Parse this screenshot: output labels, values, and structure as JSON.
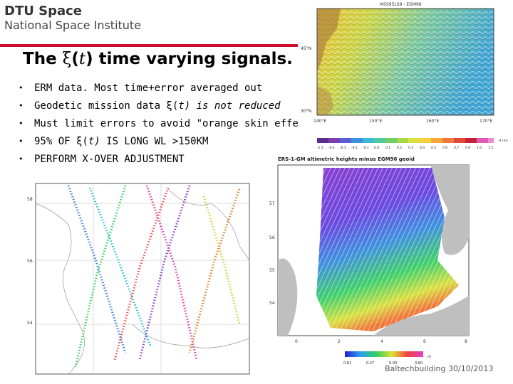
{
  "logo": {
    "line1": "DTU Space",
    "line2": "National Space Institute"
  },
  "slide": {
    "title_prefix": "The ",
    "title_xi": "ξ",
    "title_paren_open": "(",
    "title_t": "t",
    "title_paren_close": ")",
    "title_suffix": " time varying signals.",
    "bullets": [
      {
        "text": "ERM data. Most time+error averaged out"
      },
      {
        "pre": "Geodetic mission data ξ(",
        "italic": "t) is not reduced"
      },
      {
        "text": "Must limit errors to avoid \"orange skin effect\""
      },
      {
        "pre": "95% OF ξ(",
        "italic": "t)",
        "post": " IS LONG WL >150KM"
      },
      {
        "text": "PERFORM X-OVER ADJUSTMENT"
      }
    ]
  },
  "map_top": {
    "header": "MSS95LS9 - EGM96",
    "lat_top": "45°N",
    "lat_bottom": "30°N",
    "lon_labels": [
      "140°E",
      "150°E",
      "160°E",
      "170°E"
    ],
    "scale_values": [
      "-1.5",
      "-0.4",
      "-0.3",
      "-0.2",
      "-0.1",
      "0.0",
      "0.1",
      "0.2",
      "0.3",
      "0.4",
      "0.5",
      "0.6",
      "0.7",
      "0.8",
      "1.0",
      "1.5"
    ],
    "unit": "H (m)"
  },
  "map_left": {
    "lat_labels": [
      "58",
      "56",
      "54"
    ]
  },
  "map_right": {
    "title": "ERS-1-GM altimetric heights minus EGM96 geoid",
    "lat_labels": [
      "57",
      "56",
      "55",
      "54"
    ],
    "lon_labels": [
      "0",
      "2",
      "4",
      "6",
      "8"
    ],
    "scale_min": "0.61",
    "scale_mid1": "0.27",
    "scale_mid2": "0.00",
    "scale_max": "0.60",
    "scale_unit": "m"
  },
  "footer": {
    "text": "Baltechbuilding 30/10/2013"
  },
  "colors": {
    "accent": "#c8102e",
    "land": "#bfbfbf"
  }
}
